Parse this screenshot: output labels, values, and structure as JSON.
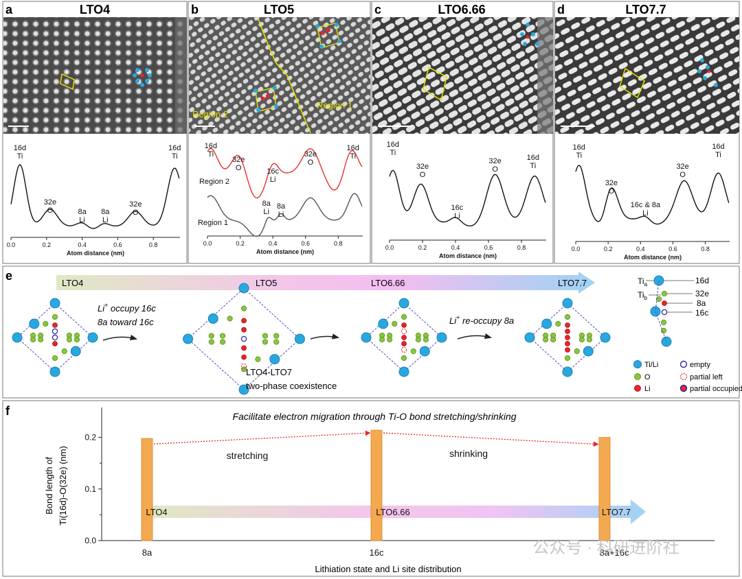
{
  "panel_a": {
    "letter": "a",
    "title": "LTO4",
    "xlabel": "Atom distance (nm)",
    "ticks": [
      "0.0",
      "0.2",
      "0.4",
      "0.6",
      "0.8"
    ],
    "peaks": [
      {
        "site": "16d",
        "atom": "Ti"
      },
      {
        "site": "32e",
        "atom": "O"
      },
      {
        "site": "8a",
        "atom": "Li"
      },
      {
        "site": "8a",
        "atom": "Li"
      },
      {
        "site": "32e",
        "atom": "O"
      },
      {
        "site": "16d",
        "atom": "Ti"
      }
    ]
  },
  "panel_b": {
    "letter": "b",
    "title": "LTO5",
    "xlabel": "Atom distance (nm)",
    "ticks": [
      "0.0",
      "0.2",
      "0.4",
      "0.6",
      "0.8"
    ],
    "region1": "Region 1",
    "region2": "Region 2",
    "peaks": [
      {
        "site": "16d",
        "atom": "Ti"
      },
      {
        "site": "32e",
        "atom": "O"
      },
      {
        "site": "16c",
        "atom": "Li"
      },
      {
        "site": "32e",
        "atom": "O"
      },
      {
        "site": "16d",
        "atom": "Ti"
      },
      {
        "site": "8a",
        "atom": "Li"
      },
      {
        "site": "8a",
        "atom": "Li"
      }
    ]
  },
  "panel_c": {
    "letter": "c",
    "title": "LTO6.66",
    "xlabel": "Atom distance (nm)",
    "ticks": [
      "0.0",
      "0.2",
      "0.4",
      "0.6",
      "0.8"
    ],
    "peaks": [
      {
        "site": "16d",
        "atom": "Ti"
      },
      {
        "site": "32e",
        "atom": "O"
      },
      {
        "site": "16c",
        "atom": "Li"
      },
      {
        "site": "32e",
        "atom": "O"
      },
      {
        "site": "16d",
        "atom": "Ti"
      }
    ]
  },
  "panel_d": {
    "letter": "d",
    "title": "LTO7.7",
    "xlabel": "Atom distance (nm)",
    "ticks": [
      "0.0",
      "0.2",
      "0.4",
      "0.6",
      "0.8"
    ],
    "peaks": [
      {
        "site": "16d",
        "atom": "Ti"
      },
      {
        "site": "32e",
        "atom": "O"
      },
      {
        "site": "16c & 8a",
        "atom": "Li"
      },
      {
        "site": "32e",
        "atom": "O"
      },
      {
        "site": "16d",
        "atom": "Ti"
      }
    ]
  },
  "panel_e": {
    "letter": "e",
    "arrow_labels": [
      "LTO4",
      "LTO5",
      "LTO6.66",
      "LTO7.7"
    ],
    "step1_line1": "Li",
    "step1_sup": "+",
    "step1_line1_rest": " occupy 16c",
    "step1_line2": "8a toward 16c",
    "coexist_line1": "LTO4-LTO7",
    "coexist_line2": "two-phase coexistence",
    "step2": "Li",
    "step2_sup": "+",
    "step2_rest": " re-occupy 8a",
    "key_ti_a": "Ti",
    "key_ti_a_sub": "a",
    "key_ti_b": "Ti",
    "key_ti_b_sub": "b",
    "key_sites": [
      "16d",
      "32e",
      "8a",
      "16c"
    ],
    "legend": [
      {
        "label": "Ti/Li"
      },
      {
        "label": "empty"
      },
      {
        "label": "O"
      },
      {
        "label": "partial left"
      },
      {
        "label": "Li"
      },
      {
        "label": "partial occupied"
      }
    ]
  },
  "panel_f": {
    "letter": "f",
    "title": "Facilitate electron migration through Ti-O bond stretching/shrinking",
    "ylabel_line1": "Bond length of",
    "ylabel_line2": "Ti(16d)-O(32e) (nm)",
    "xlabel": "Lithiation state and Li site distribution",
    "stretch_label": "stretching",
    "shrink_label": "shrinking",
    "arrow_labels": [
      "LTO4",
      "LTO6.66",
      "LTO7.7"
    ]
  },
  "chart_data": {
    "type": "bar",
    "title": "Facilitate electron migration through Ti-O bond stretching/shrinking",
    "categories": [
      "8a",
      "16c",
      "8a+16c"
    ],
    "values": [
      0.198,
      0.214,
      0.2
    ],
    "xlabel": "Lithiation state and Li site distribution",
    "ylabel": "Bond length of Ti(16d)-O(32e) (nm)",
    "ylim": [
      0.0,
      0.25
    ],
    "yticks": [
      "0.0",
      "0.1",
      "0.2"
    ],
    "bar_color": "#f4a84f"
  },
  "watermark": "公众号 · 科研进阶社",
  "colors": {
    "ti": "#29a8e0",
    "o": "#8cc63f",
    "li": "#e8252b",
    "empty": "#2b2aa0",
    "guide": "#e8e200",
    "region1": "#555555",
    "region2": "#e8302a"
  }
}
